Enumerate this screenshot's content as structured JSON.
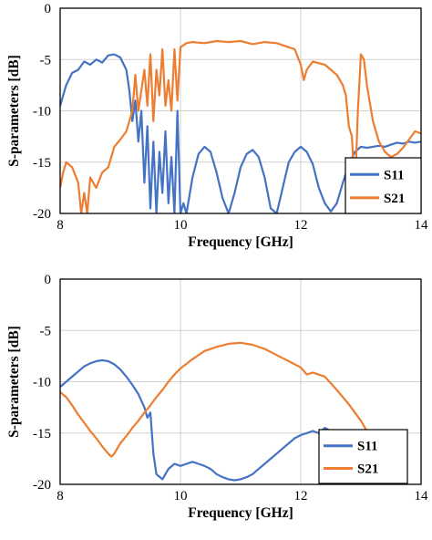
{
  "chart_data": [
    {
      "type": "line",
      "xlabel": "Frequency [GHz]",
      "ylabel": "S-parameters [dB]",
      "xlim": [
        8,
        14
      ],
      "ylim": [
        -20,
        0
      ],
      "xticks": [
        8,
        10,
        12,
        14
      ],
      "yticks": [
        0,
        -5,
        -10,
        -15,
        -20
      ],
      "grid": true,
      "legend": "bottom-right",
      "series": [
        {
          "name": "S11",
          "color": "#4472C4",
          "x": [
            8.0,
            8.1,
            8.2,
            8.3,
            8.4,
            8.5,
            8.6,
            8.7,
            8.8,
            8.9,
            9.0,
            9.1,
            9.15,
            9.2,
            9.25,
            9.3,
            9.35,
            9.4,
            9.45,
            9.5,
            9.55,
            9.6,
            9.65,
            9.7,
            9.75,
            9.8,
            9.85,
            9.9,
            9.95,
            10.0,
            10.05,
            10.1,
            10.2,
            10.3,
            10.4,
            10.5,
            10.6,
            10.7,
            10.8,
            10.9,
            11.0,
            11.1,
            11.2,
            11.3,
            11.4,
            11.5,
            11.6,
            11.7,
            11.8,
            11.9,
            12.0,
            12.1,
            12.2,
            12.3,
            12.4,
            12.5,
            12.6,
            12.7,
            12.8,
            12.9,
            13.0,
            13.1,
            13.2,
            13.3,
            13.4,
            13.5,
            13.6,
            13.7,
            13.8,
            13.9,
            14.0
          ],
          "y": [
            -9.5,
            -7.5,
            -6.3,
            -6.0,
            -5.2,
            -5.5,
            -5.0,
            -5.3,
            -4.6,
            -4.5,
            -4.8,
            -6.0,
            -8.0,
            -11.0,
            -9.0,
            -13.0,
            -10.0,
            -17.0,
            -11.5,
            -19.5,
            -13.0,
            -20.0,
            -14.0,
            -18.0,
            -12.0,
            -19.0,
            -14.5,
            -20.0,
            -10.0,
            -20.0,
            -19.0,
            -20.0,
            -16.5,
            -14.2,
            -13.5,
            -14.0,
            -16.0,
            -18.5,
            -20.0,
            -18.0,
            -15.5,
            -14.2,
            -13.8,
            -14.5,
            -16.5,
            -19.5,
            -20.0,
            -17.5,
            -15.0,
            -14.0,
            -13.5,
            -14.0,
            -15.2,
            -17.5,
            -19.0,
            -19.8,
            -19.0,
            -17.0,
            -15.2,
            -14.0,
            -13.5,
            -13.6,
            -13.5,
            -13.4,
            -13.5,
            -13.3,
            -13.1,
            -13.2,
            -13.0,
            -13.1,
            -13.0
          ]
        },
        {
          "name": "S21",
          "color": "#ED7D31",
          "x": [
            8.0,
            8.05,
            8.1,
            8.2,
            8.3,
            8.35,
            8.4,
            8.45,
            8.5,
            8.6,
            8.7,
            8.8,
            8.9,
            9.0,
            9.1,
            9.2,
            9.25,
            9.3,
            9.35,
            9.4,
            9.45,
            9.5,
            9.55,
            9.6,
            9.65,
            9.7,
            9.75,
            9.8,
            9.85,
            9.9,
            9.95,
            10.0,
            10.1,
            10.2,
            10.4,
            10.6,
            10.8,
            11.0,
            11.2,
            11.4,
            11.6,
            11.8,
            11.9,
            12.0,
            12.05,
            12.1,
            12.2,
            12.4,
            12.6,
            12.7,
            12.75,
            12.8,
            12.85,
            12.9,
            12.95,
            13.0,
            13.05,
            13.1,
            13.2,
            13.3,
            13.4,
            13.5,
            13.6,
            13.7,
            13.8,
            13.9,
            14.0
          ],
          "y": [
            -17.5,
            -16.0,
            -15.0,
            -15.5,
            -17.0,
            -20.0,
            -18.0,
            -20.0,
            -16.5,
            -17.5,
            -16.0,
            -15.5,
            -13.5,
            -12.8,
            -12.0,
            -10.0,
            -6.5,
            -10.0,
            -8.0,
            -6.0,
            -9.5,
            -4.5,
            -11.0,
            -6.0,
            -8.5,
            -4.0,
            -9.5,
            -7.0,
            -10.0,
            -4.0,
            -9.0,
            -3.8,
            -3.4,
            -3.3,
            -3.4,
            -3.2,
            -3.3,
            -3.2,
            -3.5,
            -3.3,
            -3.4,
            -3.8,
            -4.0,
            -5.5,
            -7.0,
            -6.0,
            -5.2,
            -5.5,
            -6.5,
            -7.5,
            -8.5,
            -11.5,
            -12.5,
            -18.0,
            -10.0,
            -4.5,
            -5.0,
            -7.5,
            -11.0,
            -13.0,
            -14.0,
            -14.5,
            -14.2,
            -13.6,
            -12.8,
            -12.0,
            -12.2
          ]
        }
      ]
    },
    {
      "type": "line",
      "xlabel": "Frequency [GHz]",
      "ylabel": "S-parameters [dB]",
      "xlim": [
        8,
        14
      ],
      "ylim": [
        -20,
        0
      ],
      "xticks": [
        8,
        10,
        12,
        14
      ],
      "yticks": [
        0,
        -5,
        -10,
        -15,
        -20
      ],
      "grid": true,
      "legend": "bottom-right",
      "series": [
        {
          "name": "S11",
          "color": "#4472C4",
          "x": [
            8.0,
            8.1,
            8.2,
            8.3,
            8.4,
            8.5,
            8.6,
            8.7,
            8.8,
            8.9,
            9.0,
            9.1,
            9.2,
            9.3,
            9.4,
            9.45,
            9.5,
            9.55,
            9.6,
            9.7,
            9.8,
            9.9,
            10.0,
            10.1,
            10.2,
            10.3,
            10.4,
            10.5,
            10.6,
            10.7,
            10.8,
            10.9,
            11.0,
            11.1,
            11.2,
            11.3,
            11.4,
            11.5,
            11.6,
            11.7,
            11.8,
            11.9,
            12.0,
            12.1,
            12.2,
            12.3,
            12.4,
            12.5,
            12.6,
            12.7,
            12.8,
            12.9
          ],
          "y": [
            -10.5,
            -10.0,
            -9.5,
            -9.0,
            -8.5,
            -8.2,
            -8.0,
            -7.9,
            -8.0,
            -8.3,
            -8.8,
            -9.5,
            -10.3,
            -11.2,
            -12.5,
            -13.5,
            -13.0,
            -17.0,
            -19.0,
            -19.5,
            -18.5,
            -18.0,
            -18.2,
            -18.0,
            -17.8,
            -18.0,
            -18.2,
            -18.5,
            -19.0,
            -19.3,
            -19.5,
            -19.6,
            -19.5,
            -19.3,
            -19.0,
            -18.5,
            -18.0,
            -17.5,
            -17.0,
            -16.5,
            -16.0,
            -15.5,
            -15.2,
            -15.0,
            -14.8,
            -15.0,
            -14.5,
            -14.8,
            -15.0,
            -14.8,
            -15.0,
            -15.2
          ]
        },
        {
          "name": "S21",
          "color": "#ED7D31",
          "x": [
            8.0,
            8.1,
            8.2,
            8.3,
            8.4,
            8.5,
            8.6,
            8.7,
            8.8,
            8.85,
            8.9,
            9.0,
            9.1,
            9.2,
            9.3,
            9.4,
            9.5,
            9.6,
            9.7,
            9.8,
            9.9,
            10.0,
            10.2,
            10.4,
            10.6,
            10.8,
            11.0,
            11.2,
            11.4,
            11.6,
            11.8,
            12.0,
            12.1,
            12.2,
            12.4,
            12.6,
            12.8,
            13.0,
            13.2,
            13.25
          ],
          "y": [
            -11.0,
            -11.5,
            -12.3,
            -13.2,
            -14.0,
            -14.8,
            -15.5,
            -16.3,
            -17.0,
            -17.3,
            -17.0,
            -16.0,
            -15.3,
            -14.5,
            -13.8,
            -13.0,
            -12.3,
            -11.5,
            -10.8,
            -10.0,
            -9.3,
            -8.7,
            -7.8,
            -7.0,
            -6.6,
            -6.3,
            -6.2,
            -6.4,
            -6.8,
            -7.4,
            -8.0,
            -8.6,
            -9.3,
            -9.1,
            -9.5,
            -10.8,
            -12.2,
            -13.8,
            -15.8,
            -16.2
          ]
        }
      ]
    }
  ]
}
